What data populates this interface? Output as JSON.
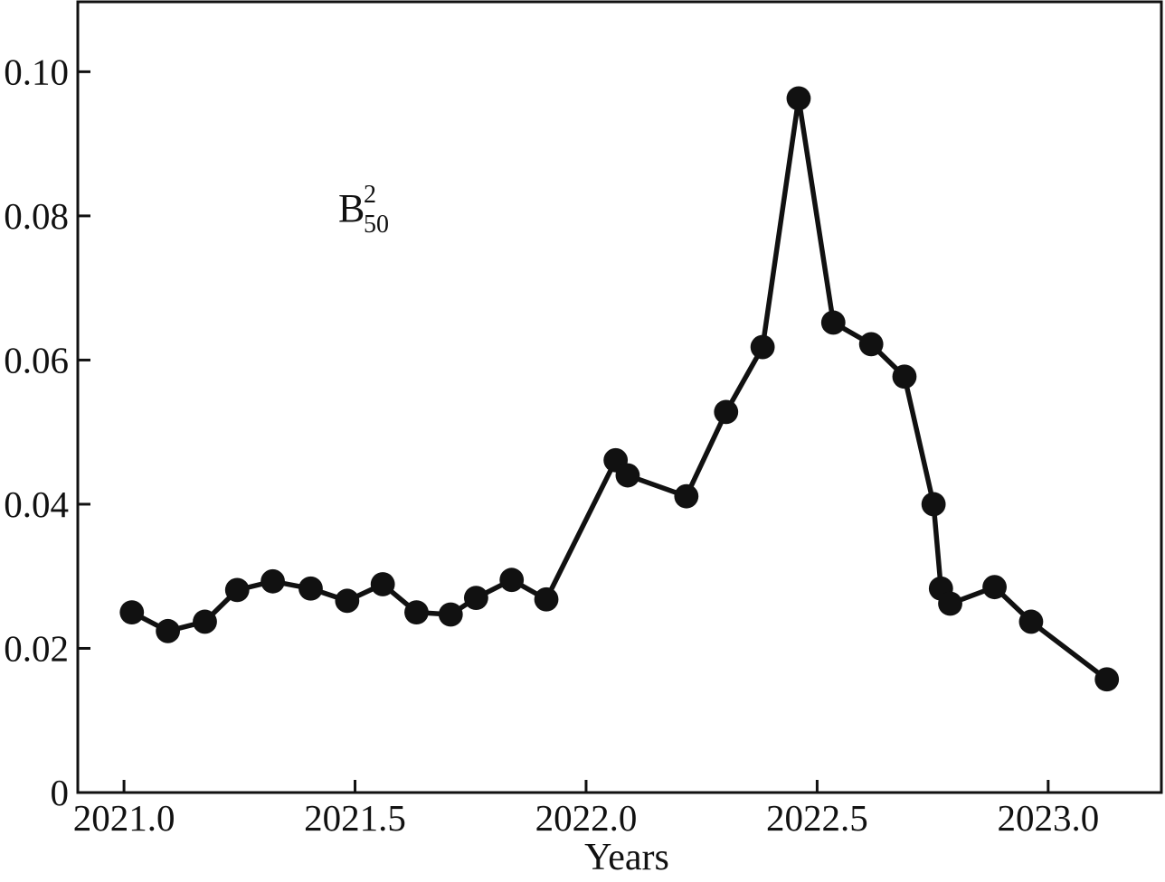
{
  "page": {
    "background_color": "#ffffff",
    "ink_color": "#111111"
  },
  "chart_data": {
    "type": "line",
    "title": "",
    "xlabel": "Years",
    "ylabel": "",
    "annotation": {
      "base": "B",
      "sup": "2",
      "sub": "50"
    },
    "grid": false,
    "legend": null,
    "xlim": [
      2020.9,
      2023.245
    ],
    "ylim": [
      0,
      0.1097
    ],
    "x_ticks": [
      2021.0,
      2021.5,
      2022.0,
      2022.5,
      2023.0
    ],
    "x_tick_labels": [
      "2021.0",
      "2021.5",
      "2022.0",
      "2022.5",
      "2023.0"
    ],
    "y_ticks": [
      0,
      0.02,
      0.04,
      0.06,
      0.08,
      0.1
    ],
    "y_tick_labels": [
      "0",
      "0.02",
      "0.04",
      "0.06",
      "0.08",
      "0.10"
    ],
    "axis_color": "#111111",
    "series": [
      {
        "name": "B50^2",
        "marker": "circle",
        "color": "#111111",
        "x": [
          2021.017,
          2021.095,
          2021.175,
          2021.245,
          2021.322,
          2021.404,
          2021.483,
          2021.56,
          2021.633,
          2021.707,
          2021.762,
          2021.839,
          2021.914,
          2022.064,
          2022.09,
          2022.217,
          2022.303,
          2022.382,
          2022.46,
          2022.535,
          2022.617,
          2022.689,
          2022.752,
          2022.768,
          2022.788,
          2022.884,
          2022.963,
          2023.127
        ],
        "y": [
          0.025,
          0.0224,
          0.0237,
          0.0281,
          0.0293,
          0.0283,
          0.0266,
          0.0289,
          0.025,
          0.0247,
          0.027,
          0.0295,
          0.0268,
          0.0461,
          0.044,
          0.0411,
          0.0528,
          0.0618,
          0.0963,
          0.0652,
          0.0622,
          0.0577,
          0.04,
          0.0283,
          0.0262,
          0.0285,
          0.0237,
          0.0157
        ]
      }
    ]
  }
}
